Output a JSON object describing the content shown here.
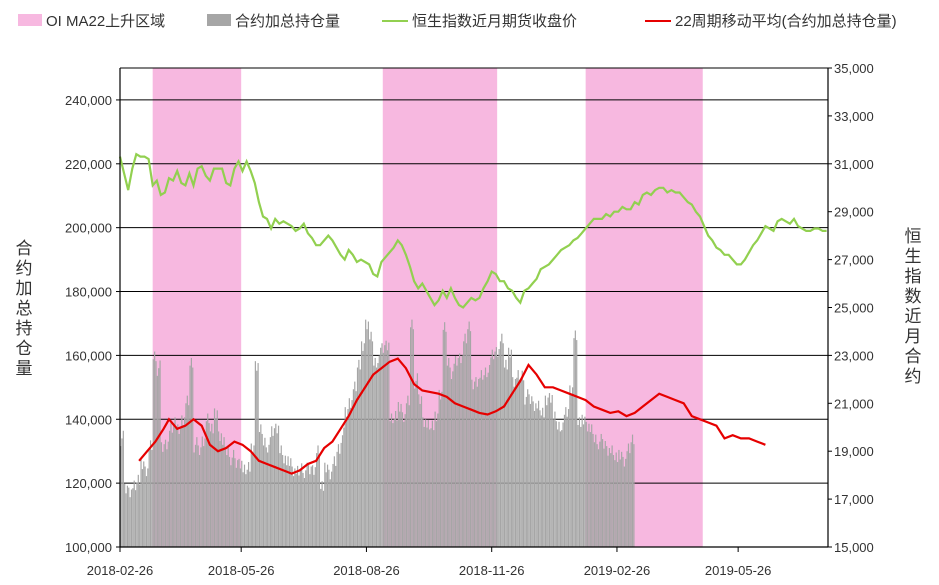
{
  "chart_data": {
    "type": "bar+line",
    "legend": [
      {
        "label": "OI MA22上升区域",
        "color": "#f7b8e0"
      },
      {
        "label": "合约加总持仓量",
        "color": "#a6a6a6"
      },
      {
        "label": "恒生指数近月期货收盘价",
        "color": "#92d050"
      },
      {
        "label": "22周期移动平均(合约加总持仓量)",
        "color": "#e60000"
      }
    ],
    "y_left": {
      "label": "合约加总持仓量",
      "min": 100000,
      "max": 250000,
      "ticks": [
        "100,000",
        "120,000",
        "140,000",
        "160,000",
        "180,000",
        "200,000",
        "220,000",
        "240,000"
      ]
    },
    "y_right": {
      "label": "恒生指数近月合约",
      "min": 15000,
      "max": 35000,
      "ticks": [
        "15,000",
        "17,000",
        "19,000",
        "21,000",
        "23,000",
        "25,000",
        "27,000",
        "29,000",
        "31,000",
        "33,000",
        "35,000"
      ]
    },
    "x_ticks": [
      "2018-02-26",
      "2018-05-26",
      "2018-08-26",
      "2018-11-26",
      "2019-02-26",
      "2019-05-26"
    ],
    "x_range_days": [
      0,
      520
    ],
    "x_tick_days": [
      0,
      89,
      181,
      273,
      365,
      454
    ],
    "rise_regions_days": [
      [
        24,
        89
      ],
      [
        193,
        277
      ],
      [
        342,
        428
      ]
    ],
    "open_interest_bars": {
      "sample_every_days": 3,
      "values": [
        134000,
        118000,
        118000,
        119000,
        122000,
        125000,
        124000,
        131000,
        160000,
        156000,
        131000,
        133000,
        137000,
        140000,
        136000,
        140000,
        145000,
        158000,
        132000,
        130000,
        134000,
        140000,
        138000,
        141000,
        135000,
        132000,
        130000,
        128000,
        126000,
        127000,
        124000,
        126000,
        130000,
        157000,
        136000,
        133000,
        132000,
        136000,
        138000,
        130000,
        128000,
        126000,
        124000,
        123000,
        125000,
        124000,
        124000,
        125000,
        130000,
        120000,
        124000,
        123000,
        126000,
        131000,
        135000,
        142000,
        146000,
        150000,
        158000,
        162000,
        170000,
        165000,
        158000,
        160000,
        162000,
        164000,
        140000,
        142000,
        143000,
        141000,
        145000,
        170000,
        152000,
        146000,
        140000,
        138000,
        139000,
        140000,
        148000,
        168000,
        158000,
        155000,
        158000,
        160000,
        165000,
        170000,
        150000,
        152000,
        153000,
        155000,
        157000,
        160000,
        162000,
        165000,
        158000,
        160000,
        152000,
        153000,
        154000,
        147000,
        146000,
        145000,
        144000,
        143000,
        145000,
        147000,
        140000,
        138000,
        139000,
        142000,
        150000,
        166000,
        140000,
        139000,
        138000,
        136000,
        134000,
        133000,
        132000,
        131000,
        130000,
        129000,
        128000,
        127000,
        130000,
        134000
      ]
    },
    "open_interest_ma22": [
      [
        14,
        127000
      ],
      [
        20,
        130000
      ],
      [
        26,
        133000
      ],
      [
        32,
        137000
      ],
      [
        36,
        140000
      ],
      [
        42,
        137000
      ],
      [
        48,
        138000
      ],
      [
        54,
        140000
      ],
      [
        60,
        138000
      ],
      [
        66,
        132000
      ],
      [
        72,
        130000
      ],
      [
        78,
        131000
      ],
      [
        84,
        133000
      ],
      [
        90,
        132000
      ],
      [
        96,
        130000
      ],
      [
        102,
        127000
      ],
      [
        108,
        126000
      ],
      [
        114,
        125000
      ],
      [
        120,
        124000
      ],
      [
        126,
        123000
      ],
      [
        132,
        124000
      ],
      [
        138,
        126000
      ],
      [
        144,
        127000
      ],
      [
        150,
        131000
      ],
      [
        156,
        133000
      ],
      [
        162,
        137000
      ],
      [
        168,
        141000
      ],
      [
        174,
        146000
      ],
      [
        180,
        150000
      ],
      [
        186,
        154000
      ],
      [
        192,
        156000
      ],
      [
        198,
        158000
      ],
      [
        204,
        159000
      ],
      [
        210,
        156000
      ],
      [
        216,
        151000
      ],
      [
        222,
        149000
      ],
      [
        228,
        148500
      ],
      [
        234,
        148000
      ],
      [
        240,
        147000
      ],
      [
        246,
        145000
      ],
      [
        252,
        144000
      ],
      [
        258,
        143000
      ],
      [
        264,
        142000
      ],
      [
        270,
        141500
      ],
      [
        276,
        142500
      ],
      [
        282,
        144000
      ],
      [
        288,
        148000
      ],
      [
        294,
        152000
      ],
      [
        300,
        157000
      ],
      [
        306,
        154000
      ],
      [
        312,
        150000
      ],
      [
        318,
        150000
      ],
      [
        324,
        149000
      ],
      [
        330,
        148000
      ],
      [
        336,
        147000
      ],
      [
        342,
        146000
      ],
      [
        348,
        144000
      ],
      [
        354,
        143000
      ],
      [
        360,
        142000
      ],
      [
        366,
        142500
      ],
      [
        372,
        141000
      ],
      [
        378,
        142000
      ],
      [
        384,
        144000
      ],
      [
        390,
        146000
      ],
      [
        396,
        148000
      ],
      [
        402,
        147000
      ],
      [
        408,
        146000
      ],
      [
        414,
        145000
      ],
      [
        420,
        141000
      ],
      [
        426,
        140000
      ],
      [
        432,
        139000
      ],
      [
        438,
        138000
      ],
      [
        444,
        134000
      ],
      [
        450,
        135000
      ],
      [
        456,
        134000
      ],
      [
        462,
        134000
      ],
      [
        468,
        133000
      ],
      [
        474,
        132000
      ]
    ],
    "hsi_near_month_close": [
      [
        0,
        31300
      ],
      [
        3,
        30600
      ],
      [
        6,
        29900
      ],
      [
        9,
        30800
      ],
      [
        12,
        31400
      ],
      [
        15,
        31300
      ],
      [
        18,
        31300
      ],
      [
        21,
        31200
      ],
      [
        24,
        30100
      ],
      [
        27,
        30300
      ],
      [
        30,
        29700
      ],
      [
        33,
        29800
      ],
      [
        36,
        30400
      ],
      [
        39,
        30300
      ],
      [
        42,
        30700
      ],
      [
        45,
        30200
      ],
      [
        48,
        30100
      ],
      [
        51,
        30600
      ],
      [
        54,
        30100
      ],
      [
        57,
        30800
      ],
      [
        60,
        30900
      ],
      [
        63,
        30500
      ],
      [
        66,
        30300
      ],
      [
        69,
        30800
      ],
      [
        72,
        30800
      ],
      [
        75,
        30800
      ],
      [
        78,
        30200
      ],
      [
        81,
        30100
      ],
      [
        84,
        30800
      ],
      [
        87,
        31100
      ],
      [
        90,
        30700
      ],
      [
        93,
        31100
      ],
      [
        96,
        30700
      ],
      [
        99,
        30200
      ],
      [
        102,
        29400
      ],
      [
        105,
        28800
      ],
      [
        108,
        28700
      ],
      [
        111,
        28300
      ],
      [
        114,
        28700
      ],
      [
        117,
        28500
      ],
      [
        120,
        28600
      ],
      [
        123,
        28500
      ],
      [
        126,
        28400
      ],
      [
        129,
        28200
      ],
      [
        132,
        28300
      ],
      [
        135,
        28500
      ],
      [
        138,
        28100
      ],
      [
        141,
        27900
      ],
      [
        144,
        27600
      ],
      [
        147,
        27600
      ],
      [
        150,
        27800
      ],
      [
        153,
        28000
      ],
      [
        156,
        27800
      ],
      [
        159,
        27500
      ],
      [
        162,
        27200
      ],
      [
        165,
        27000
      ],
      [
        168,
        27400
      ],
      [
        171,
        27200
      ],
      [
        174,
        26900
      ],
      [
        177,
        27000
      ],
      [
        180,
        26900
      ],
      [
        183,
        26800
      ],
      [
        186,
        26400
      ],
      [
        189,
        26300
      ],
      [
        192,
        26900
      ],
      [
        195,
        27100
      ],
      [
        198,
        27300
      ],
      [
        201,
        27500
      ],
      [
        204,
        27800
      ],
      [
        207,
        27600
      ],
      [
        210,
        27200
      ],
      [
        213,
        26700
      ],
      [
        216,
        26100
      ],
      [
        219,
        25800
      ],
      [
        222,
        26000
      ],
      [
        225,
        25700
      ],
      [
        228,
        25400
      ],
      [
        231,
        25100
      ],
      [
        234,
        25300
      ],
      [
        237,
        25700
      ],
      [
        240,
        25400
      ],
      [
        243,
        25800
      ],
      [
        246,
        25400
      ],
      [
        249,
        25100
      ],
      [
        252,
        25000
      ],
      [
        255,
        25200
      ],
      [
        258,
        25400
      ],
      [
        261,
        25300
      ],
      [
        264,
        25400
      ],
      [
        267,
        25800
      ],
      [
        270,
        26100
      ],
      [
        273,
        26500
      ],
      [
        276,
        26400
      ],
      [
        279,
        26100
      ],
      [
        282,
        26100
      ],
      [
        285,
        25800
      ],
      [
        288,
        25700
      ],
      [
        291,
        25400
      ],
      [
        294,
        25200
      ],
      [
        297,
        25700
      ],
      [
        300,
        25800
      ],
      [
        303,
        26000
      ],
      [
        306,
        26200
      ],
      [
        309,
        26600
      ],
      [
        312,
        26700
      ],
      [
        315,
        26800
      ],
      [
        318,
        27000
      ],
      [
        321,
        27200
      ],
      [
        324,
        27400
      ],
      [
        327,
        27500
      ],
      [
        330,
        27600
      ],
      [
        333,
        27800
      ],
      [
        336,
        27900
      ],
      [
        339,
        28100
      ],
      [
        342,
        28300
      ],
      [
        345,
        28500
      ],
      [
        348,
        28700
      ],
      [
        351,
        28700
      ],
      [
        354,
        28700
      ],
      [
        357,
        28900
      ],
      [
        360,
        28800
      ],
      [
        363,
        29000
      ],
      [
        366,
        29000
      ],
      [
        369,
        29200
      ],
      [
        372,
        29100
      ],
      [
        375,
        29100
      ],
      [
        378,
        29400
      ],
      [
        381,
        29300
      ],
      [
        384,
        29700
      ],
      [
        387,
        29800
      ],
      [
        390,
        29700
      ],
      [
        393,
        29900
      ],
      [
        396,
        30000
      ],
      [
        399,
        30000
      ],
      [
        402,
        29800
      ],
      [
        405,
        29900
      ],
      [
        408,
        29800
      ],
      [
        411,
        29800
      ],
      [
        414,
        29600
      ],
      [
        417,
        29400
      ],
      [
        420,
        29300
      ],
      [
        423,
        29000
      ],
      [
        426,
        28800
      ],
      [
        429,
        28400
      ],
      [
        432,
        28000
      ],
      [
        435,
        27800
      ],
      [
        438,
        27500
      ],
      [
        441,
        27400
      ],
      [
        444,
        27200
      ],
      [
        447,
        27200
      ],
      [
        450,
        27000
      ],
      [
        453,
        26800
      ],
      [
        456,
        26800
      ],
      [
        459,
        27000
      ],
      [
        462,
        27300
      ],
      [
        465,
        27600
      ],
      [
        468,
        27800
      ],
      [
        471,
        28100
      ],
      [
        474,
        28400
      ],
      [
        477,
        28300
      ],
      [
        480,
        28200
      ],
      [
        483,
        28600
      ],
      [
        486,
        28700
      ],
      [
        489,
        28600
      ],
      [
        492,
        28500
      ],
      [
        495,
        28700
      ],
      [
        498,
        28400
      ],
      [
        501,
        28300
      ],
      [
        504,
        28200
      ],
      [
        507,
        28200
      ],
      [
        510,
        28300
      ],
      [
        513,
        28300
      ],
      [
        516,
        28200
      ],
      [
        519,
        28200
      ]
    ]
  }
}
